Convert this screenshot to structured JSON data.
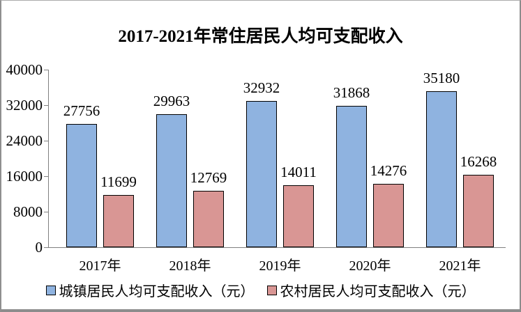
{
  "chart_data": {
    "type": "bar",
    "title": "2017-2021年常住居民人均可支配收入",
    "categories": [
      "2017年",
      "2018年",
      "2019年",
      "2020年",
      "2021年"
    ],
    "series": [
      {
        "name": "城镇居民人均可支配收入（元）",
        "color": "#8fb3e0",
        "border_color": "#000000",
        "values": [
          27756,
          29963,
          32932,
          31868,
          35180
        ]
      },
      {
        "name": "农村居民人均可支配收入（元）",
        "color": "#d99694",
        "border_color": "#000000",
        "values": [
          11699,
          12769,
          14011,
          14276,
          16268
        ]
      }
    ],
    "y_ticks": [
      0,
      8000,
      16000,
      24000,
      32000,
      40000
    ],
    "ylim": [
      0,
      40000
    ],
    "grid": false,
    "data_labels": true,
    "legend_position": "bottom",
    "axis_color": "#808080",
    "background_color": "#ffffff"
  }
}
